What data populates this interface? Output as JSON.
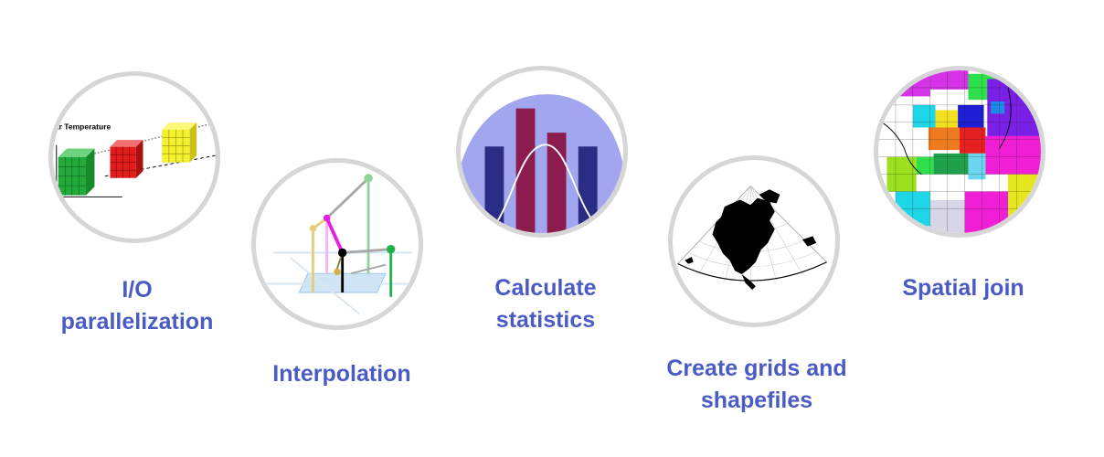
{
  "features": [
    {
      "id": "io",
      "label_lines": [
        "I/O",
        "parallelization"
      ],
      "illustration_text": "ar Temperature"
    },
    {
      "id": "interp",
      "label_lines": [
        "Interpolation"
      ]
    },
    {
      "id": "stats",
      "label_lines": [
        "Calculate",
        "statistics"
      ]
    },
    {
      "id": "grids",
      "label_lines": [
        "Create grids and",
        "shapefiles"
      ]
    },
    {
      "id": "join",
      "label_lines": [
        "Spatial join"
      ]
    }
  ],
  "colors": {
    "label": "#4a5bc4",
    "circle_border": "#d6d6d6",
    "stats_bg": "#a2a6ee",
    "stats_bar_dark": "#2b2c83",
    "stats_bar_red": "#8c1c4d",
    "cube_green": "#23a93a",
    "cube_red": "#e01c1c",
    "cube_yellow": "#f5f02e"
  }
}
